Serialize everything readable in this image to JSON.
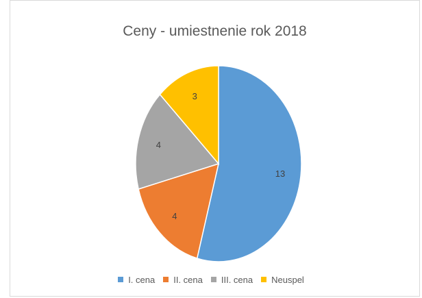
{
  "chart_data": {
    "type": "pie",
    "title": "Ceny - umiestnenie rok 2018",
    "categories": [
      "I. cena",
      "II. cena",
      "III. cena",
      "Neuspel"
    ],
    "values": [
      13,
      4,
      4,
      3
    ],
    "data_labels": [
      "13",
      "4",
      "4",
      "3"
    ],
    "colors": [
      "#5b9bd5",
      "#ed7d31",
      "#a5a5a5",
      "#ffc000"
    ],
    "legend_position": "bottom",
    "start_angle": "12 o'clock",
    "direction": "clockwise"
  }
}
